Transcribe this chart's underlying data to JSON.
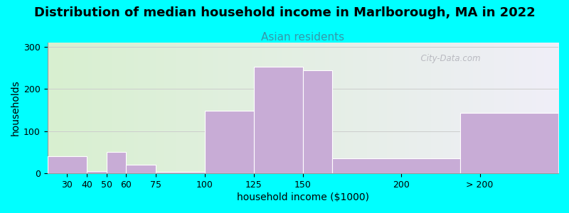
{
  "title": "Distribution of median household income in Marlborough, MA in 2022",
  "subtitle": "Asian residents",
  "xlabel": "household income ($1000)",
  "ylabel": "households",
  "background_color": "#00FFFF",
  "plot_bg_gradient_left": "#d8f0d0",
  "plot_bg_gradient_right": "#f0eef8",
  "bar_color": "#c8acd6",
  "bar_edge_color": "#ffffff",
  "bar_left_edges": [
    20,
    40,
    50,
    60,
    75,
    100,
    125,
    150,
    165,
    230
  ],
  "bar_right_edges": [
    40,
    50,
    60,
    75,
    100,
    125,
    150,
    165,
    230,
    280
  ],
  "bar_values": [
    40,
    5,
    50,
    20,
    3,
    148,
    253,
    245,
    35,
    143
  ],
  "xtick_positions": [
    30,
    40,
    50,
    60,
    75,
    100,
    125,
    150,
    200,
    240
  ],
  "xtick_labels": [
    "30",
    "40",
    "50",
    "60",
    "75",
    "100",
    "125",
    "150",
    "200",
    "> 200"
  ],
  "xlim": [
    20,
    280
  ],
  "ylim": [
    0,
    310
  ],
  "yticks": [
    0,
    100,
    200,
    300
  ],
  "grid_color": "#cccccc",
  "title_fontsize": 13,
  "subtitle_fontsize": 11,
  "subtitle_color": "#3399aa",
  "axis_label_fontsize": 10,
  "tick_fontsize": 9,
  "watermark_text": "  City-Data.com"
}
